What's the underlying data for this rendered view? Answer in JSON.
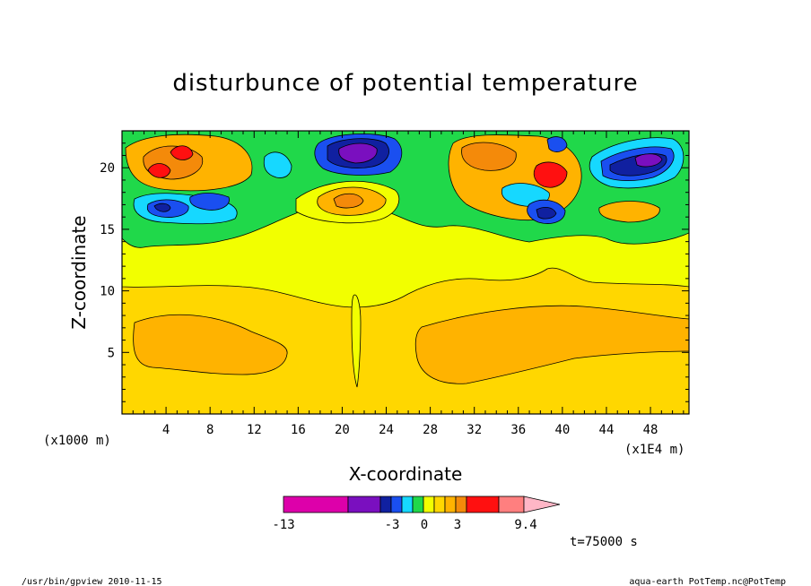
{
  "chart_data": {
    "type": "heatmap",
    "title": "disturbunce of potential temperature",
    "xlabel": "X-coordinate",
    "ylabel": "Z-coordinate",
    "x_unit": "(x1E4 m)",
    "z_unit": "(x1000 m)",
    "xlim": [
      0,
      51.5
    ],
    "ylim": [
      0,
      23
    ],
    "x_ticks": [
      "4",
      "8",
      "12",
      "16",
      "20",
      "24",
      "28",
      "32",
      "36",
      "40",
      "44",
      "48"
    ],
    "y_ticks": [
      "5",
      "10",
      "15",
      "20"
    ],
    "time_label": "t=75000 s",
    "colorbar": {
      "tick_labels": [
        "-13",
        "-3",
        "0",
        "3",
        "9.4"
      ],
      "colors": [
        "#dd00aa",
        "#7a0fbf",
        "#1020a0",
        "#1a4ff0",
        "#16d8ff",
        "#20d84a",
        "#f2ff00",
        "#ffd700",
        "#ffb300",
        "#f48a0a",
        "#ff1010",
        "#ff7f7f",
        "#ffb6c6"
      ]
    },
    "fields": [
      {
        "level": "yellow",
        "color": "#f2ff00"
      },
      {
        "level": "green",
        "color": "#20d84a"
      },
      {
        "level": "orange",
        "color": "#ffb300"
      },
      {
        "level": "dark-orange",
        "color": "#f48a0a"
      },
      {
        "level": "red",
        "color": "#ff1010"
      },
      {
        "level": "cyan",
        "color": "#16d8ff"
      },
      {
        "level": "blue",
        "color": "#1a4ff0"
      },
      {
        "level": "navy",
        "color": "#1020a0"
      },
      {
        "level": "purple",
        "color": "#7a0fbf"
      }
    ]
  },
  "footer": {
    "left": "/usr/bin/gpview  2010-11-15",
    "right": "aqua-earth_PotTemp.nc@PotTemp"
  }
}
